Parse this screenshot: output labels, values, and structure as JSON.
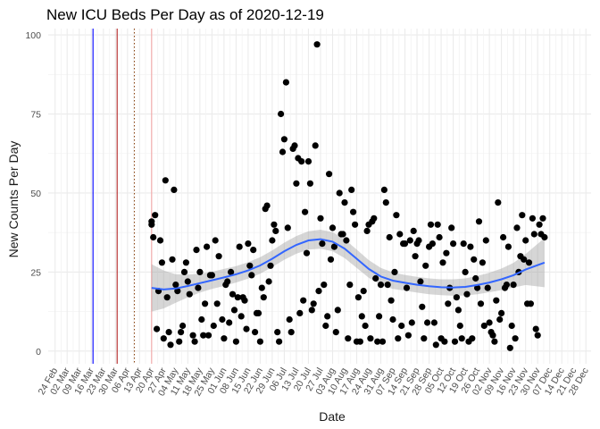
{
  "chart_data": {
    "type": "scatter",
    "title": "New ICU Beds Per Day as of 2020-12-19",
    "xlabel": "Date",
    "ylabel": "New Counts Per Day",
    "ylim": [
      -4,
      102
    ],
    "xlim": [
      "2020-02-20",
      "2020-12-31"
    ],
    "grid": true,
    "y_ticks": [
      0,
      25,
      50,
      75,
      100
    ],
    "x_ticks": [
      "2020-02-24",
      "2020-03-02",
      "2020-03-09",
      "2020-03-16",
      "2020-03-23",
      "2020-03-30",
      "2020-04-06",
      "2020-04-13",
      "2020-04-20",
      "2020-04-27",
      "2020-05-04",
      "2020-05-11",
      "2020-05-18",
      "2020-05-25",
      "2020-06-01",
      "2020-06-08",
      "2020-06-15",
      "2020-06-22",
      "2020-06-29",
      "2020-07-06",
      "2020-07-13",
      "2020-07-20",
      "2020-07-27",
      "2020-08-03",
      "2020-08-10",
      "2020-08-17",
      "2020-08-24",
      "2020-08-31",
      "2020-09-07",
      "2020-09-14",
      "2020-09-21",
      "2020-09-28",
      "2020-10-05",
      "2020-10-12",
      "2020-10-19",
      "2020-10-26",
      "2020-11-02",
      "2020-11-09",
      "2020-11-16",
      "2020-11-23",
      "2020-11-30",
      "2020-12-07",
      "2020-12-14",
      "2020-12-21",
      "2020-12-28"
    ],
    "x_tick_labels": [
      "24 Feb",
      "02 Mar",
      "09 Mar",
      "16 Mar",
      "23 Mar",
      "30 Mar",
      "06 Apr",
      "13 Apr",
      "20 Apr",
      "27 Apr",
      "04 May",
      "11 May",
      "18 May",
      "25 May",
      "01 Jun",
      "08 Jun",
      "15 Jun",
      "22 Jun",
      "29 Jun",
      "06 Jul",
      "13 Jul",
      "20 Jul",
      "27 Jul",
      "03 Aug",
      "10 Aug",
      "17 Aug",
      "24 Aug",
      "31 Aug",
      "07 Sep",
      "14 Sep",
      "21 Sep",
      "28 Sep",
      "05 Oct",
      "12 Oct",
      "19 Oct",
      "26 Oct",
      "02 Nov",
      "09 Nov",
      "16 Nov",
      "23 Nov",
      "30 Nov",
      "07 Dec",
      "14 Dec",
      "21 Dec",
      "28 Dec"
    ],
    "vlines": [
      {
        "date": "2020-03-17",
        "color": "#0000ff",
        "style": "solid"
      },
      {
        "date": "2020-03-31",
        "color": "#b22222",
        "style": "solid"
      },
      {
        "date": "2020-04-10",
        "color": "#8b4513",
        "style": "dotted"
      },
      {
        "date": "2020-04-20",
        "color": "#f4a7a7",
        "style": "solid"
      }
    ],
    "series": [
      {
        "points": [
          [
            "2020-04-20",
            40
          ],
          [
            "2020-04-20",
            41
          ],
          [
            "2020-04-21",
            36
          ],
          [
            "2020-04-22",
            43
          ],
          [
            "2020-04-23",
            7
          ],
          [
            "2020-04-24",
            19
          ],
          [
            "2020-04-25",
            35
          ],
          [
            "2020-04-26",
            28
          ],
          [
            "2020-04-27",
            4
          ],
          [
            "2020-04-28",
            54
          ],
          [
            "2020-04-29",
            17
          ],
          [
            "2020-04-30",
            6
          ],
          [
            "2020-05-01",
            2
          ],
          [
            "2020-05-02",
            29
          ],
          [
            "2020-05-03",
            51
          ],
          [
            "2020-05-04",
            21
          ],
          [
            "2020-05-05",
            19
          ],
          [
            "2020-05-06",
            3
          ],
          [
            "2020-05-07",
            6
          ],
          [
            "2020-05-08",
            8
          ],
          [
            "2020-05-09",
            25
          ],
          [
            "2020-05-10",
            28
          ],
          [
            "2020-05-11",
            22
          ],
          [
            "2020-05-12",
            18
          ],
          [
            "2020-05-14",
            5
          ],
          [
            "2020-05-15",
            3
          ],
          [
            "2020-05-16",
            32
          ],
          [
            "2020-05-17",
            20
          ],
          [
            "2020-05-18",
            25
          ],
          [
            "2020-05-19",
            10
          ],
          [
            "2020-05-20",
            5
          ],
          [
            "2020-05-21",
            15
          ],
          [
            "2020-05-22",
            33
          ],
          [
            "2020-05-23",
            5
          ],
          [
            "2020-05-24",
            24
          ],
          [
            "2020-05-25",
            24
          ],
          [
            "2020-05-26",
            8
          ],
          [
            "2020-05-27",
            35
          ],
          [
            "2020-05-28",
            15
          ],
          [
            "2020-05-29",
            30
          ],
          [
            "2020-05-31",
            10
          ],
          [
            "2020-06-01",
            4
          ],
          [
            "2020-06-02",
            21
          ],
          [
            "2020-06-03",
            22
          ],
          [
            "2020-06-04",
            9
          ],
          [
            "2020-06-05",
            25
          ],
          [
            "2020-06-06",
            18
          ],
          [
            "2020-06-07",
            13
          ],
          [
            "2020-06-08",
            3
          ],
          [
            "2020-06-09",
            17
          ],
          [
            "2020-06-10",
            33
          ],
          [
            "2020-06-11",
            11
          ],
          [
            "2020-06-12",
            17
          ],
          [
            "2020-06-13",
            16
          ],
          [
            "2020-06-14",
            7
          ],
          [
            "2020-06-15",
            34
          ],
          [
            "2020-06-16",
            27
          ],
          [
            "2020-06-17",
            24
          ],
          [
            "2020-06-18",
            32
          ],
          [
            "2020-06-19",
            6
          ],
          [
            "2020-06-20",
            12
          ],
          [
            "2020-06-21",
            12
          ],
          [
            "2020-06-22",
            3
          ],
          [
            "2020-06-23",
            20
          ],
          [
            "2020-06-24",
            17
          ],
          [
            "2020-06-25",
            45
          ],
          [
            "2020-06-26",
            46
          ],
          [
            "2020-06-27",
            22
          ],
          [
            "2020-06-28",
            27
          ],
          [
            "2020-06-29",
            35
          ],
          [
            "2020-06-30",
            40
          ],
          [
            "2020-07-01",
            38
          ],
          [
            "2020-07-02",
            6
          ],
          [
            "2020-07-03",
            3
          ],
          [
            "2020-07-04",
            75
          ],
          [
            "2020-07-05",
            63
          ],
          [
            "2020-07-06",
            67
          ],
          [
            "2020-07-07",
            85
          ],
          [
            "2020-07-08",
            39
          ],
          [
            "2020-07-09",
            10
          ],
          [
            "2020-07-10",
            6
          ],
          [
            "2020-07-11",
            64
          ],
          [
            "2020-07-12",
            65
          ],
          [
            "2020-07-13",
            53
          ],
          [
            "2020-07-14",
            61
          ],
          [
            "2020-07-15",
            12
          ],
          [
            "2020-07-16",
            60
          ],
          [
            "2020-07-17",
            16
          ],
          [
            "2020-07-18",
            44
          ],
          [
            "2020-07-19",
            31
          ],
          [
            "2020-07-20",
            60
          ],
          [
            "2020-07-21",
            53
          ],
          [
            "2020-07-22",
            13
          ],
          [
            "2020-07-23",
            15
          ],
          [
            "2020-07-24",
            65
          ],
          [
            "2020-07-25",
            97
          ],
          [
            "2020-07-26",
            19
          ],
          [
            "2020-07-27",
            42
          ],
          [
            "2020-07-28",
            34
          ],
          [
            "2020-07-29",
            21
          ],
          [
            "2020-07-30",
            8
          ],
          [
            "2020-07-31",
            11
          ],
          [
            "2020-08-01",
            56
          ],
          [
            "2020-08-02",
            29
          ],
          [
            "2020-08-03",
            39
          ],
          [
            "2020-08-04",
            33
          ],
          [
            "2020-08-05",
            6
          ],
          [
            "2020-08-06",
            13
          ],
          [
            "2020-08-07",
            50
          ],
          [
            "2020-08-08",
            37
          ],
          [
            "2020-08-09",
            37
          ],
          [
            "2020-08-10",
            47
          ],
          [
            "2020-08-11",
            35
          ],
          [
            "2020-08-12",
            4
          ],
          [
            "2020-08-13",
            21
          ],
          [
            "2020-08-14",
            51
          ],
          [
            "2020-08-15",
            44
          ],
          [
            "2020-08-16",
            40
          ],
          [
            "2020-08-17",
            3
          ],
          [
            "2020-08-18",
            17
          ],
          [
            "2020-08-19",
            3
          ],
          [
            "2020-08-20",
            11
          ],
          [
            "2020-08-21",
            19
          ],
          [
            "2020-08-22",
            8
          ],
          [
            "2020-08-23",
            38
          ],
          [
            "2020-08-24",
            40
          ],
          [
            "2020-08-25",
            4
          ],
          [
            "2020-08-26",
            41
          ],
          [
            "2020-08-27",
            42
          ],
          [
            "2020-08-28",
            23
          ],
          [
            "2020-08-29",
            3
          ],
          [
            "2020-08-30",
            11
          ],
          [
            "2020-08-31",
            21
          ],
          [
            "2020-09-01",
            3
          ],
          [
            "2020-09-02",
            51
          ],
          [
            "2020-09-03",
            47
          ],
          [
            "2020-09-04",
            21
          ],
          [
            "2020-09-05",
            36
          ],
          [
            "2020-09-06",
            16
          ],
          [
            "2020-09-07",
            10
          ],
          [
            "2020-09-08",
            25
          ],
          [
            "2020-09-09",
            43
          ],
          [
            "2020-09-10",
            4
          ],
          [
            "2020-09-11",
            37
          ],
          [
            "2020-09-12",
            8
          ],
          [
            "2020-09-13",
            34
          ],
          [
            "2020-09-14",
            34
          ],
          [
            "2020-09-15",
            20
          ],
          [
            "2020-09-16",
            5
          ],
          [
            "2020-09-17",
            35
          ],
          [
            "2020-09-18",
            9
          ],
          [
            "2020-09-19",
            38
          ],
          [
            "2020-09-20",
            30
          ],
          [
            "2020-09-21",
            34
          ],
          [
            "2020-09-22",
            35
          ],
          [
            "2020-09-23",
            22
          ],
          [
            "2020-09-24",
            14
          ],
          [
            "2020-09-25",
            4
          ],
          [
            "2020-09-26",
            27
          ],
          [
            "2020-09-27",
            9
          ],
          [
            "2020-09-28",
            33
          ],
          [
            "2020-09-29",
            40
          ],
          [
            "2020-09-30",
            34
          ],
          [
            "2020-10-01",
            9
          ],
          [
            "2020-10-02",
            2
          ],
          [
            "2020-10-03",
            40
          ],
          [
            "2020-10-04",
            36
          ],
          [
            "2020-10-05",
            4
          ],
          [
            "2020-10-06",
            28
          ],
          [
            "2020-10-07",
            3
          ],
          [
            "2020-10-08",
            31
          ],
          [
            "2020-10-09",
            15
          ],
          [
            "2020-10-10",
            20
          ],
          [
            "2020-10-11",
            39
          ],
          [
            "2020-10-12",
            34
          ],
          [
            "2020-10-13",
            3
          ],
          [
            "2020-10-14",
            17
          ],
          [
            "2020-10-15",
            13
          ],
          [
            "2020-10-16",
            8
          ],
          [
            "2020-10-17",
            4
          ],
          [
            "2020-10-18",
            34
          ],
          [
            "2020-10-19",
            25
          ],
          [
            "2020-10-20",
            18
          ],
          [
            "2020-10-21",
            3
          ],
          [
            "2020-10-22",
            33
          ],
          [
            "2020-10-23",
            4
          ],
          [
            "2020-10-24",
            29
          ],
          [
            "2020-10-25",
            23
          ],
          [
            "2020-10-26",
            20
          ],
          [
            "2020-10-27",
            41
          ],
          [
            "2020-10-28",
            15
          ],
          [
            "2020-10-29",
            28
          ],
          [
            "2020-10-30",
            8
          ],
          [
            "2020-10-31",
            35
          ],
          [
            "2020-11-01",
            20
          ],
          [
            "2020-11-02",
            9
          ],
          [
            "2020-11-03",
            6
          ],
          [
            "2020-11-04",
            5
          ],
          [
            "2020-11-05",
            3
          ],
          [
            "2020-11-06",
            16
          ],
          [
            "2020-11-07",
            47
          ],
          [
            "2020-11-08",
            10
          ],
          [
            "2020-11-09",
            12
          ],
          [
            "2020-11-10",
            36
          ],
          [
            "2020-11-11",
            20
          ],
          [
            "2020-11-12",
            21
          ],
          [
            "2020-11-13",
            33
          ],
          [
            "2020-11-14",
            1
          ],
          [
            "2020-11-15",
            8
          ],
          [
            "2020-11-16",
            21
          ],
          [
            "2020-11-17",
            4
          ],
          [
            "2020-11-18",
            39
          ],
          [
            "2020-11-19",
            25
          ],
          [
            "2020-11-20",
            30
          ],
          [
            "2020-11-21",
            43
          ],
          [
            "2020-11-22",
            29
          ],
          [
            "2020-11-23",
            35
          ],
          [
            "2020-11-24",
            15
          ],
          [
            "2020-11-25",
            28
          ],
          [
            "2020-11-26",
            15
          ],
          [
            "2020-11-27",
            42
          ],
          [
            "2020-11-28",
            37
          ],
          [
            "2020-11-29",
            7
          ],
          [
            "2020-11-30",
            5
          ],
          [
            "2020-12-01",
            40
          ],
          [
            "2020-12-02",
            37
          ],
          [
            "2020-12-03",
            42
          ],
          [
            "2020-12-04",
            36
          ]
        ]
      }
    ],
    "smooth": {
      "points": [
        [
          "2020-04-20",
          20
        ],
        [
          "2020-04-27",
          19.5
        ],
        [
          "2020-05-04",
          19.8
        ],
        [
          "2020-05-11",
          20.6
        ],
        [
          "2020-05-18",
          21.5
        ],
        [
          "2020-05-25",
          22.4
        ],
        [
          "2020-06-01",
          23.3
        ],
        [
          "2020-06-08",
          24.3
        ],
        [
          "2020-06-15",
          25.5
        ],
        [
          "2020-06-22",
          27.1
        ],
        [
          "2020-06-29",
          29.2
        ],
        [
          "2020-07-06",
          31.6
        ],
        [
          "2020-07-13",
          33.6
        ],
        [
          "2020-07-20",
          35
        ],
        [
          "2020-07-27",
          35.4
        ],
        [
          "2020-08-03",
          34.6
        ],
        [
          "2020-08-10",
          32.4
        ],
        [
          "2020-08-17",
          29.2
        ],
        [
          "2020-08-24",
          26
        ],
        [
          "2020-08-31",
          23.6
        ],
        [
          "2020-09-07",
          22.3
        ],
        [
          "2020-09-14",
          21.6
        ],
        [
          "2020-09-21",
          21
        ],
        [
          "2020-09-28",
          20.5
        ],
        [
          "2020-10-05",
          20.2
        ],
        [
          "2020-10-12",
          20.1
        ],
        [
          "2020-10-19",
          20.3
        ],
        [
          "2020-10-26",
          20.9
        ],
        [
          "2020-11-02",
          21.7
        ],
        [
          "2020-11-09",
          22.7
        ],
        [
          "2020-11-16",
          24
        ],
        [
          "2020-11-23",
          25.8
        ],
        [
          "2020-12-04",
          28
        ]
      ],
      "band_half_width": [
        7.5,
        6,
        4.5,
        3.6,
        3,
        2.7,
        2.7,
        2.6,
        2.6,
        2.6,
        2.6,
        2.7,
        2.8,
        2.9,
        3,
        3,
        3,
        2.9,
        2.8,
        2.7,
        2.6,
        2.5,
        2.5,
        2.5,
        2.5,
        2.6,
        2.7,
        2.9,
        3.1,
        3.4,
        3.9,
        4.9,
        7.8
      ]
    }
  }
}
